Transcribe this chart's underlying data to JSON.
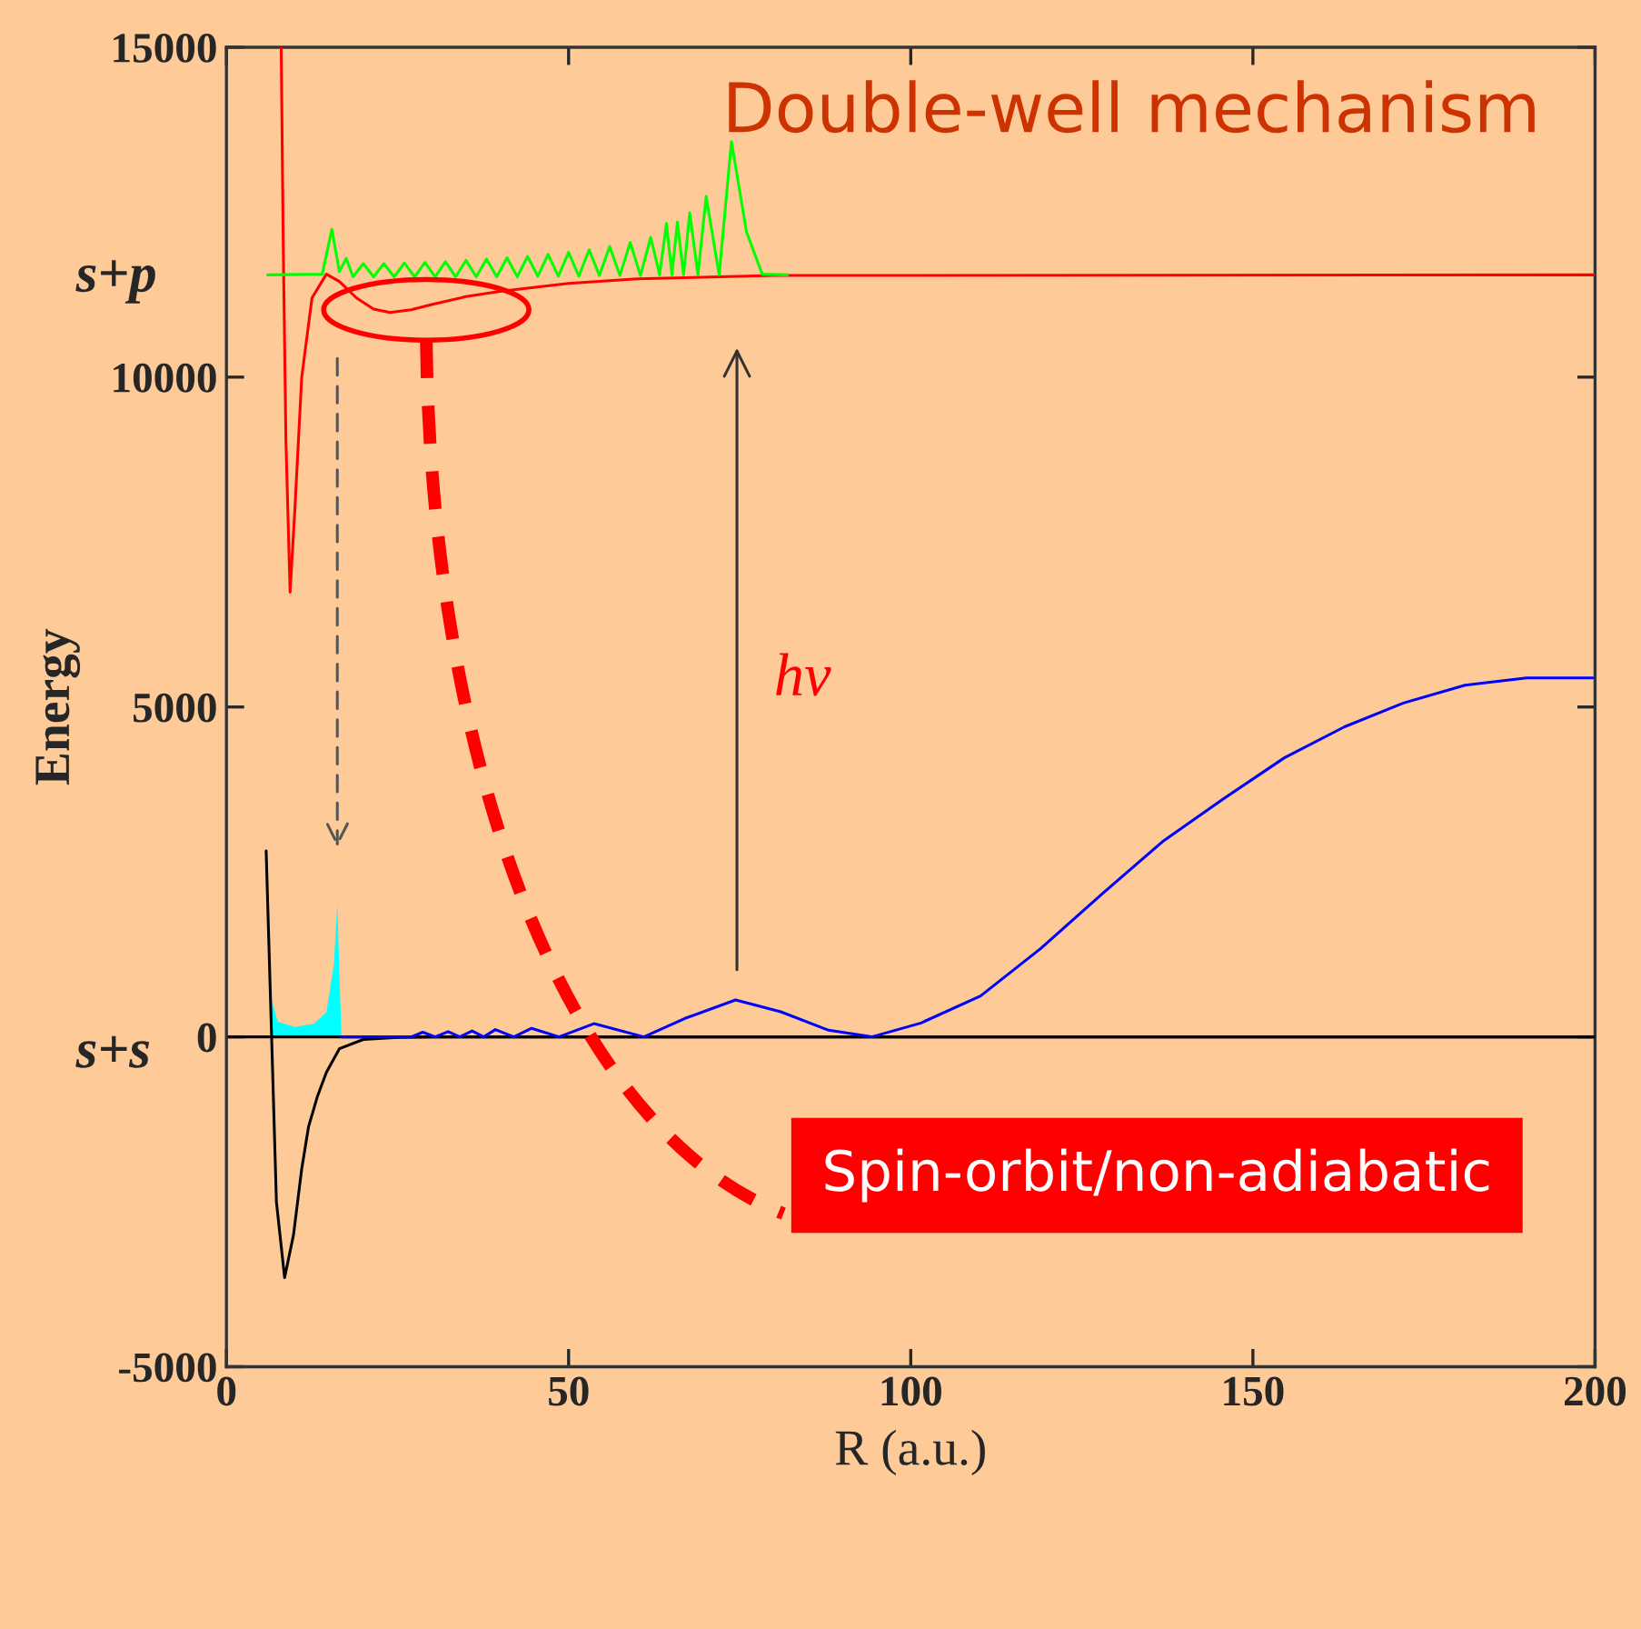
{
  "chart_data": {
    "type": "line",
    "title": "Double-well mechanism",
    "xlabel": "R (a.u.)",
    "ylabel": "Energy",
    "annotations": [
      "s+p",
      "s+s",
      "hν",
      "Spin-orbit/non-adiabatic"
    ],
    "xlim": [
      0,
      200
    ],
    "ylim": [
      -5000,
      15000
    ],
    "xticks": [
      0,
      50,
      100,
      150,
      200
    ],
    "yticks": [
      -5000,
      0,
      5000,
      10000,
      15000
    ],
    "grid": false,
    "legend": false,
    "marker": "none",
    "line_style": "solid",
    "ref_lines": [
      {
        "axis": "y",
        "value": 0,
        "color": "#000000"
      }
    ],
    "series": [
      {
        "type": "area",
        "color": "#00ffff",
        "x": [
          6.5,
          6.6,
          7.5,
          10,
          12.8,
          14.6,
          15.7,
          16.2,
          16.5,
          16.8
        ],
        "values": [
          0,
          560,
          230,
          150,
          200,
          370,
          1100,
          2000,
          1000,
          0
        ]
      },
      {
        "color": "#ff0000",
        "x": [
          8,
          8.3,
          8.7,
          9.3,
          10,
          11,
          12.5,
          14.6,
          16.5,
          19,
          21.5,
          23.9,
          27,
          30,
          35,
          40,
          50,
          60,
          80,
          200
        ],
        "values": [
          15000,
          12000,
          9000,
          6740,
          8000,
          10000,
          11200,
          11560,
          11450,
          11200,
          11030,
          10980,
          11020,
          11100,
          11220,
          11300,
          11420,
          11490,
          11540,
          11550
        ]
      },
      {
        "color": "#00ff00",
        "x": [
          6,
          14,
          15.4,
          16.5,
          17.5,
          18.5,
          20,
          21.5,
          23,
          24.5,
          26,
          27.5,
          29,
          30.5,
          32,
          33.5,
          35,
          36.5,
          38,
          39.5,
          41,
          42.5,
          44,
          45.5,
          47,
          48.5,
          50,
          51.5,
          53,
          54.5,
          56,
          57.5,
          59,
          60.5,
          62,
          63.3,
          64.3,
          65.1,
          65.9,
          66.8,
          67.7,
          68.9,
          70.1,
          72,
          73.8,
          76,
          78.3,
          82
        ],
        "values": [
          11550,
          11560,
          12240,
          11600,
          11800,
          11520,
          11720,
          11520,
          11720,
          11520,
          11730,
          11520,
          11740,
          11520,
          11750,
          11520,
          11770,
          11520,
          11790,
          11520,
          11810,
          11520,
          11830,
          11530,
          11860,
          11530,
          11890,
          11530,
          11930,
          11540,
          11980,
          11540,
          12040,
          11540,
          12120,
          11550,
          12330,
          11550,
          12350,
          11550,
          12490,
          11550,
          12740,
          11550,
          13570,
          12200,
          11560,
          11550
        ]
      },
      {
        "color": "#000000",
        "x": [
          5.8,
          6.6,
          7.3,
          8.5,
          9.8,
          11,
          12,
          13.3,
          14.6,
          16.5,
          20,
          25,
          30,
          200
        ],
        "values": [
          2820,
          0,
          -2500,
          -3650,
          -3000,
          -2000,
          -1360,
          -900,
          -540,
          -180,
          -40,
          -10,
          0,
          0
        ]
      },
      {
        "color": "#0000ff",
        "x": [
          16.8,
          27,
          28.7,
          30.5,
          32.4,
          34.1,
          35.9,
          37.6,
          39.3,
          42,
          44.6,
          48.6,
          53.7,
          61,
          67,
          74.4,
          81,
          88,
          94.3,
          101.5,
          110.2,
          119,
          128,
          136.8,
          145.6,
          154.6,
          163.4,
          172,
          181,
          190,
          199.7
        ],
        "values": [
          0,
          0,
          70,
          0,
          80,
          0,
          90,
          0,
          110,
          0,
          130,
          0,
          200,
          0,
          280,
          560,
          380,
          100,
          0,
          210,
          620,
          1340,
          2170,
          2960,
          3600,
          4230,
          4700,
          5060,
          5330,
          5440,
          5440
        ]
      }
    ]
  }
}
